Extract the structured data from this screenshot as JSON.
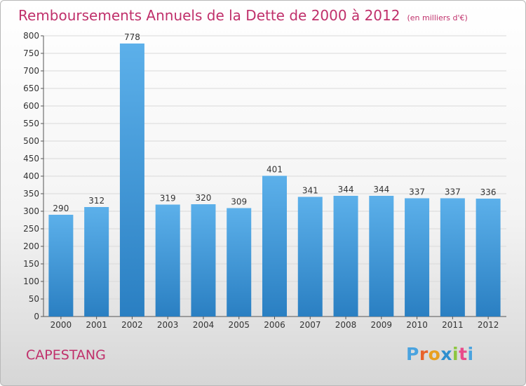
{
  "header": {
    "title": "Remboursements Annuels de la Dette de 2000 à 2012",
    "unit": "(en milliers d'€)"
  },
  "footer": {
    "location": "CAPESTANG",
    "logo_text": "Proxiti",
    "logo_colors": [
      "#4aa3df",
      "#e8622c",
      "#e8a020",
      "#2e8fcf",
      "#8cc63f",
      "#e84a8a",
      "#4aa3df"
    ]
  },
  "colors": {
    "bar_light": "#5cb0ea",
    "bar_dark": "#2a7fc2",
    "title": "#c0306b"
  },
  "chart_data": {
    "type": "bar",
    "categories": [
      "2000",
      "2001",
      "2002",
      "2003",
      "2004",
      "2005",
      "2006",
      "2007",
      "2008",
      "2009",
      "2010",
      "2011",
      "2012"
    ],
    "values": [
      290,
      312,
      778,
      319,
      320,
      309,
      401,
      341,
      344,
      344,
      337,
      337,
      336
    ],
    "title": "Remboursements Annuels de la Dette de 2000 à 2012",
    "ylim": [
      0,
      800
    ],
    "yticks": [
      0,
      50,
      100,
      150,
      200,
      250,
      300,
      350,
      400,
      450,
      500,
      550,
      600,
      650,
      700,
      750,
      800
    ],
    "grid": true,
    "legend": "none"
  }
}
